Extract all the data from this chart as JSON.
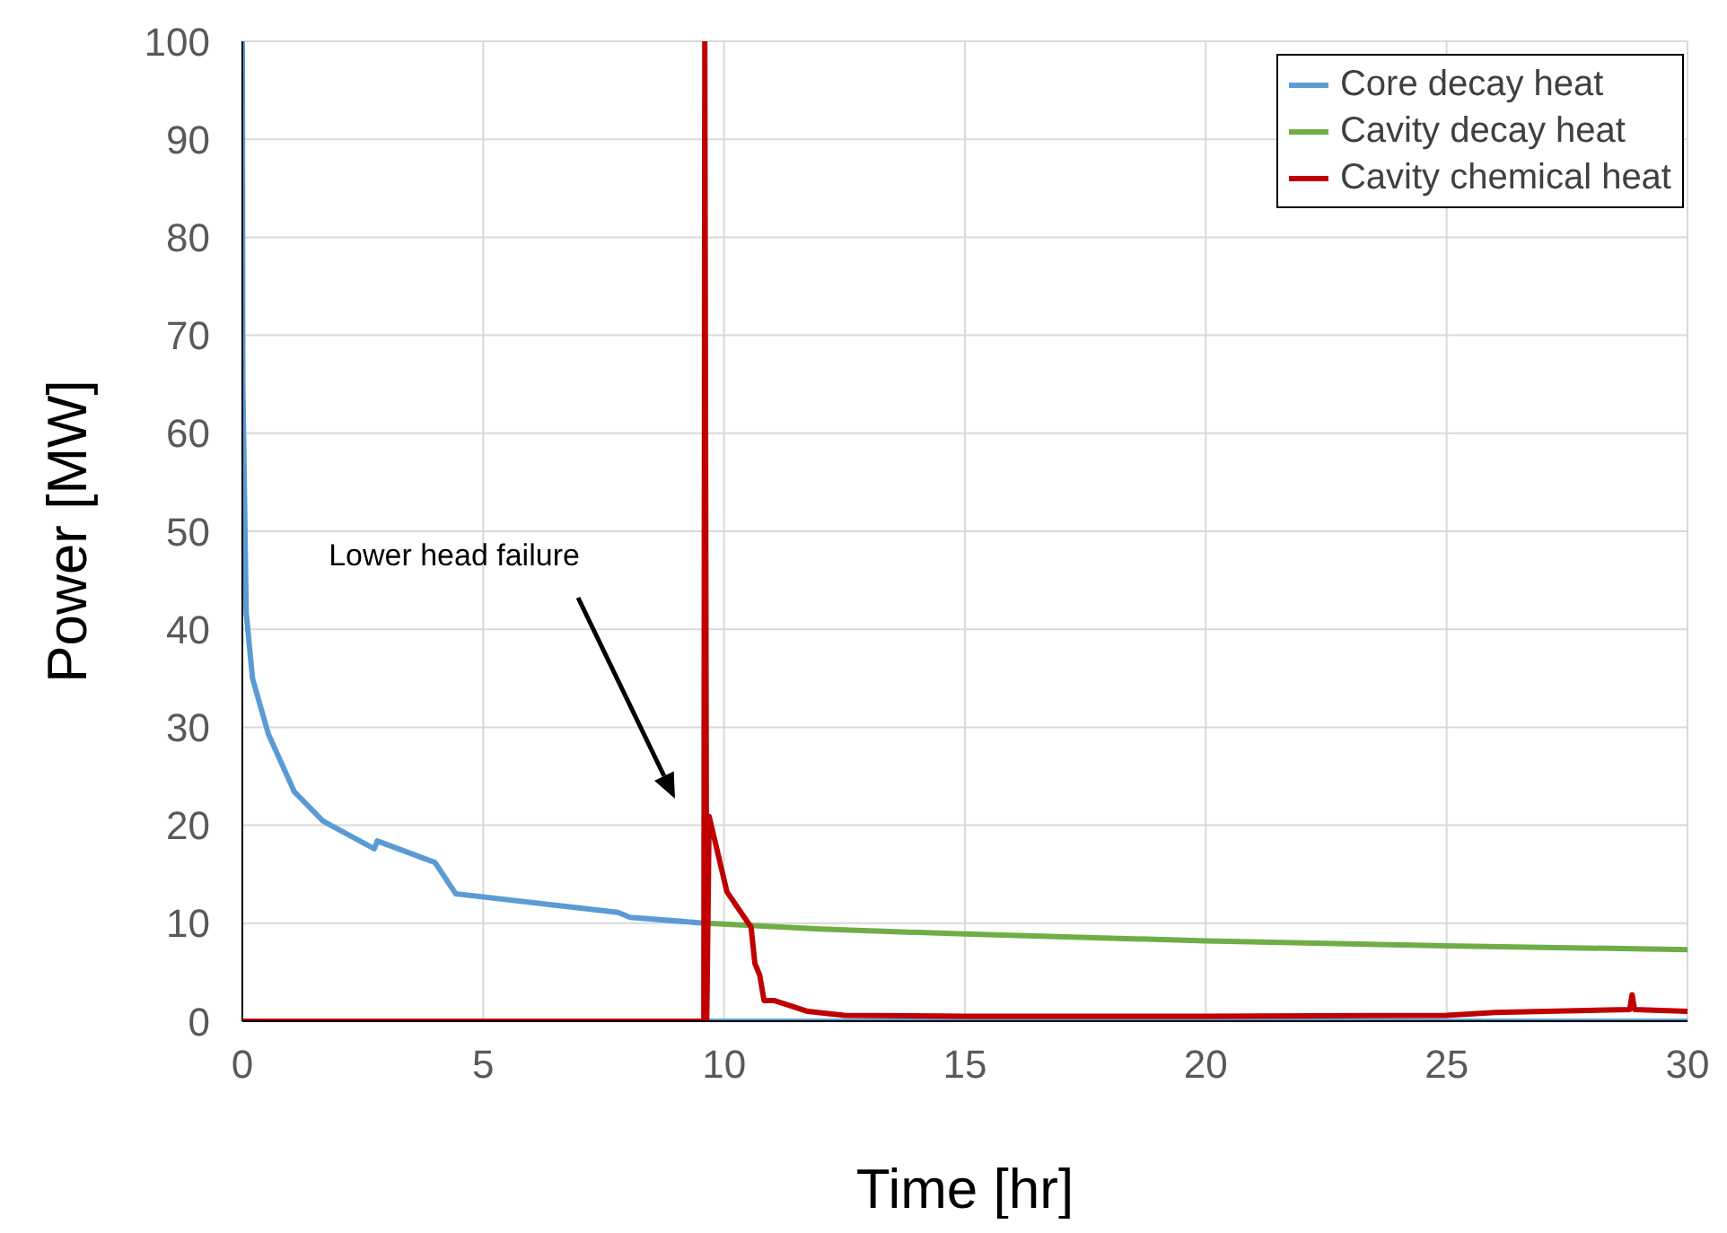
{
  "chart_data": {
    "type": "line",
    "xlabel": "Time [hr]",
    "ylabel": "Power [MW]",
    "xlim": [
      0,
      30
    ],
    "xticks": [
      0,
      5,
      10,
      15,
      20,
      25,
      30
    ],
    "ylim": [
      0,
      100
    ],
    "yticks": [
      0,
      10,
      20,
      30,
      40,
      50,
      60,
      70,
      80,
      90,
      100
    ],
    "grid": true,
    "legend": "top right",
    "marker": "none",
    "line_style": "solid",
    "annotations": [
      "Lower head failure"
    ],
    "series": [
      {
        "name": "Core decay heat",
        "color": "#5b9bd5",
        "x": [
          0,
          0.01,
          0.08,
          0.21,
          0.54,
          1.08,
          1.68,
          2.74,
          2.8,
          4.0,
          4.43,
          7.8,
          8.05,
          9.6,
          9.62,
          15,
          20,
          25,
          30
        ],
        "values": [
          100,
          65,
          41.7,
          35,
          29.3,
          23.4,
          20.4,
          17.6,
          18.4,
          16.2,
          13.0,
          11.1,
          10.6,
          10.0,
          0,
          0,
          0,
          0,
          0
        ]
      },
      {
        "name": "Cavity decay heat",
        "color": "#70ad47",
        "x": [
          9.62,
          12,
          15,
          20,
          25,
          30
        ],
        "values": [
          10.0,
          9.4,
          8.9,
          8.2,
          7.7,
          7.3
        ]
      },
      {
        "name": "Cavity chemical heat",
        "color": "#c00000",
        "x": [
          0,
          9.58,
          9.6,
          9.64,
          9.69,
          10.06,
          10.56,
          10.64,
          10.74,
          10.83,
          11.05,
          11.74,
          12.5,
          15,
          20,
          25,
          26,
          28.8,
          28.85,
          28.9,
          30
        ],
        "values": [
          0,
          0,
          100,
          0,
          20.9,
          13.2,
          9.6,
          5.9,
          4.7,
          2.1,
          2.1,
          1.0,
          0.6,
          0.5,
          0.5,
          0.6,
          0.9,
          1.2,
          2.7,
          1.2,
          1.0
        ]
      }
    ]
  }
}
